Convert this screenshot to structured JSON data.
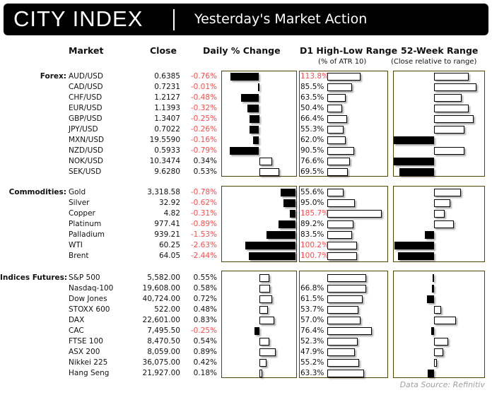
{
  "header": {
    "logo": "CITY INDEX",
    "title": "Yesterday's Market Action"
  },
  "columns": {
    "market": "Market",
    "close": "Close",
    "change": "Daily % Change",
    "range": "D1 High-Low Range",
    "range_sub": "(% of ATR 10)",
    "week52": "52-Week Range",
    "week52_sub": "(Close relative to range)"
  },
  "colors": {
    "negative": "#ff4b4b",
    "panel_border": "#4d4500",
    "bar_negative": "#000000",
    "bar_positive": "#ffffff"
  },
  "sections": [
    {
      "label": "Forex:",
      "rows": [
        {
          "market": "AUD/USD",
          "close": "0.6385",
          "change": "-0.76%",
          "change_value": -0.76,
          "range": "113.8%",
          "range_value": 113.8,
          "week52": 81
        },
        {
          "market": "CAD/USD",
          "close": "0.7231",
          "change": "-0.01%",
          "change_value": -0.01,
          "range": "85.5%",
          "range_value": 85.5,
          "week52": 98
        },
        {
          "market": "CHF/USD",
          "close": "1.2127",
          "change": "-0.48%",
          "change_value": -0.48,
          "range": "63.5%",
          "range_value": 63.5,
          "week52": 64
        },
        {
          "market": "EUR/USD",
          "close": "1.1393",
          "change": "-0.32%",
          "change_value": -0.32,
          "range": "50.4%",
          "range_value": 50.4,
          "week52": 80
        },
        {
          "market": "GBP/USD",
          "close": "1.3407",
          "change": "-0.25%",
          "change_value": -0.25,
          "range": "66.4%",
          "range_value": 66.4,
          "week52": 92
        },
        {
          "market": "JPY/USD",
          "close": "0.7022",
          "change": "-0.26%",
          "change_value": -0.26,
          "range": "55.3%",
          "range_value": 55.3,
          "week52": 71
        },
        {
          "market": "MXN/USD",
          "close": "19.5590",
          "change": "-0.16%",
          "change_value": -0.16,
          "range": "62.0%",
          "range_value": 62.0,
          "week52": -93
        },
        {
          "market": "NZD/USD",
          "close": "0.5933",
          "change": "-0.79%",
          "change_value": -0.79,
          "range": "90.5%",
          "range_value": 90.5,
          "week52": 71
        },
        {
          "market": "NOK/USD",
          "close": "10.3474",
          "change": "0.34%",
          "change_value": 0.34,
          "range": "76.6%",
          "range_value": 76.6,
          "week52": -94
        },
        {
          "market": "SEK/USD",
          "close": "9.6280",
          "change": "0.53%",
          "change_value": 0.53,
          "range": "69.5%",
          "range_value": 69.5,
          "week52": -81
        }
      ]
    },
    {
      "label": "Commodities:",
      "rows": [
        {
          "market": "Gold",
          "close": "3,318.58",
          "change": "-0.78%",
          "change_value": -0.78,
          "range": "55.6%",
          "range_value": 55.6,
          "week52": 62
        },
        {
          "market": "Silver",
          "close": "32.92",
          "change": "-0.62%",
          "change_value": -0.62,
          "range": "95.0%",
          "range_value": 95.0,
          "week52": 38
        },
        {
          "market": "Copper",
          "close": "4.82",
          "change": "-0.31%",
          "change_value": -0.31,
          "range": "185.7%",
          "range_value": 185.7,
          "week52": 25
        },
        {
          "market": "Platinum",
          "close": "977.41",
          "change": "-0.89%",
          "change_value": -0.89,
          "range": "89.2%",
          "range_value": 89.2,
          "week52": 46
        },
        {
          "market": "Palladium",
          "close": "939.21",
          "change": "-1.53%",
          "change_value": -1.53,
          "range": "83.5%",
          "range_value": 83.5,
          "week52": -21
        },
        {
          "market": "WTI",
          "close": "60.25",
          "change": "-2.63%",
          "change_value": -2.63,
          "range": "100.2%",
          "range_value": 100.2,
          "week52": -91
        },
        {
          "market": "Brent",
          "close": "64.05",
          "change": "-2.44%",
          "change_value": -2.44,
          "range": "100.7%",
          "range_value": 100.7,
          "week52": -83
        }
      ]
    },
    {
      "label": "Indices Futures:",
      "rows": [
        {
          "market": "S&P 500",
          "close": "5,582.00",
          "change": "0.55%",
          "change_value": 0.55,
          "range": "",
          "range_value": 67,
          "week52": -3
        },
        {
          "market": "Nasdaq-100",
          "close": "19,608.00",
          "change": "0.58%",
          "change_value": 0.58,
          "range": "66.8%",
          "range_value": 66.8,
          "week52": -5
        },
        {
          "market": "Dow Jones",
          "close": "40,724.00",
          "change": "0.72%",
          "change_value": 0.72,
          "range": "61.5%",
          "range_value": 61.5,
          "week52": -16
        },
        {
          "market": "STOXX 600",
          "close": "522.00",
          "change": "0.48%",
          "change_value": 0.48,
          "range": "53.7%",
          "range_value": 53.7,
          "week52": 16
        },
        {
          "market": "DAX",
          "close": "22,601.00",
          "change": "0.83%",
          "change_value": 0.83,
          "range": "57.0%",
          "range_value": 57.0,
          "week52": 51
        },
        {
          "market": "CAC",
          "close": "7,495.50",
          "change": "-0.25%",
          "change_value": -0.25,
          "range": "76.4%",
          "range_value": 76.4,
          "week52": -7
        },
        {
          "market": "FTSE 100",
          "close": "8,470.50",
          "change": "0.54%",
          "change_value": 0.54,
          "range": "52.3%",
          "range_value": 52.3,
          "week52": 33
        },
        {
          "market": "ASX 200",
          "close": "8,059.00",
          "change": "0.89%",
          "change_value": 0.89,
          "range": "47.9%",
          "range_value": 47.9,
          "week52": 22
        },
        {
          "market": "Nikkei 225",
          "close": "36,075.00",
          "change": "0.42%",
          "change_value": 0.42,
          "range": "55.2%",
          "range_value": 55.2,
          "week52": 7
        },
        {
          "market": "Hang Seng",
          "close": "21,927.00",
          "change": "0.18%",
          "change_value": 0.18,
          "range": "63.3%",
          "range_value": 63.3,
          "week52": -14
        }
      ]
    }
  ],
  "footer": {
    "source": "Data Source: Refinitiv"
  }
}
